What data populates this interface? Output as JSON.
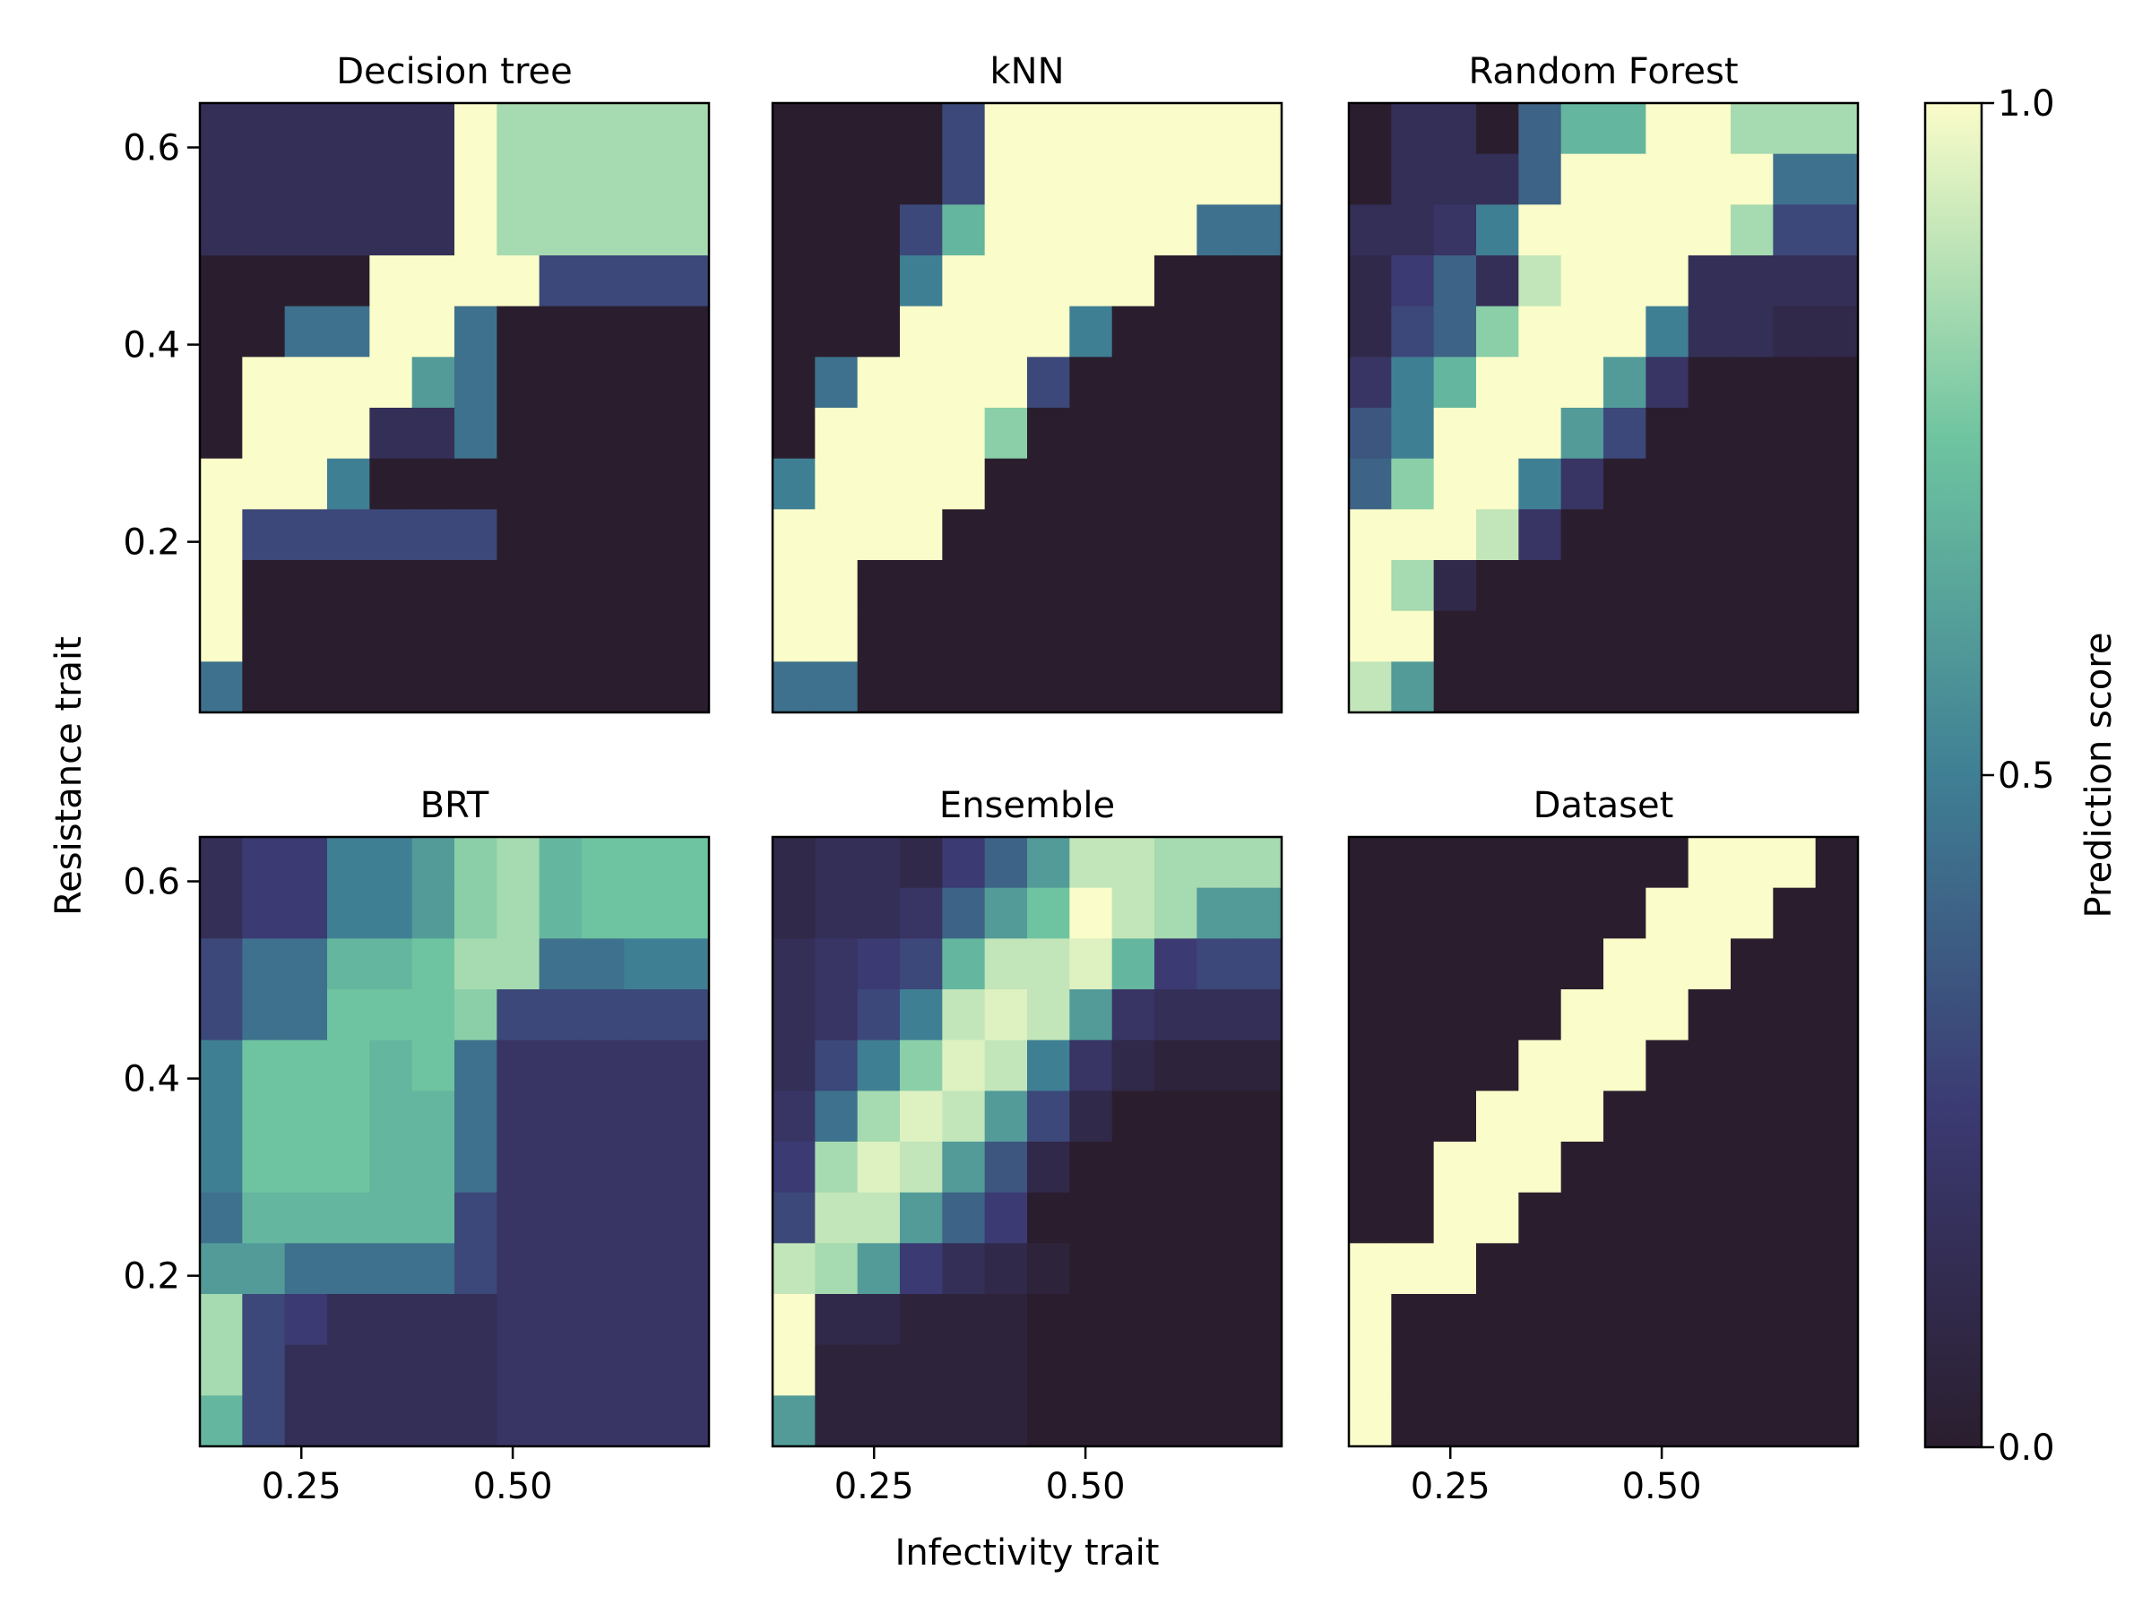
{
  "xlabel": "Infectivity trait",
  "ylabel": "Resistance trait",
  "colorbar": {
    "label": "Prediction score",
    "lim": [
      0,
      1
    ],
    "ticks": [
      {
        "value": 0,
        "label": "0.0"
      },
      {
        "value": 0.5,
        "label": "0.5"
      },
      {
        "value": 1,
        "label": "1.0"
      }
    ],
    "colors": [
      "#2a1e2e",
      "#3b3a72",
      "#3f7f94",
      "#6ec4a0",
      "#fafcc9"
    ]
  },
  "chart_data": [
    {
      "type": "heatmap",
      "title": "Decision tree",
      "xlim": [
        0.13,
        0.732
      ],
      "ylim": [
        0.027,
        0.645
      ],
      "yticks": [
        0.2,
        0.4,
        0.6
      ],
      "z": [
        [
          0.15,
          0.15,
          0.15,
          0.15,
          0.15,
          0.15,
          1,
          0.85,
          0.85,
          0.85,
          0.85,
          0.85
        ],
        [
          0.15,
          0.15,
          0.15,
          0.15,
          0.15,
          0.15,
          1,
          0.85,
          0.85,
          0.85,
          0.85,
          0.85
        ],
        [
          0.15,
          0.15,
          0.15,
          0.15,
          0.15,
          0.15,
          1,
          0.85,
          0.85,
          0.85,
          0.85,
          0.85
        ],
        [
          0,
          0,
          0,
          0,
          1,
          1,
          1,
          1,
          0.3,
          0.3,
          0.3,
          0.3
        ],
        [
          0,
          0,
          0.45,
          0.45,
          1,
          1,
          0.45,
          0,
          0,
          0,
          0,
          0
        ],
        [
          0,
          1,
          1,
          1,
          1,
          0.6,
          0.45,
          0,
          0,
          0,
          0,
          0
        ],
        [
          0,
          1,
          1,
          1,
          0.15,
          0.15,
          0.45,
          0,
          0,
          0,
          0,
          0
        ],
        [
          1,
          1,
          1,
          0.5,
          0,
          0,
          0,
          0,
          0,
          0,
          0,
          0
        ],
        [
          1,
          0.3,
          0.3,
          0.3,
          0.3,
          0.3,
          0.3,
          0,
          0,
          0,
          0,
          0
        ],
        [
          1,
          0,
          0,
          0,
          0,
          0,
          0,
          0,
          0,
          0,
          0,
          0
        ],
        [
          1,
          0,
          0,
          0,
          0,
          0,
          0,
          0,
          0,
          0,
          0,
          0
        ],
        [
          0.45,
          0,
          0,
          0,
          0,
          0,
          0,
          0,
          0,
          0,
          0,
          0
        ]
      ]
    },
    {
      "type": "heatmap",
      "title": "kNN",
      "xlim": [
        0.13,
        0.732
      ],
      "ylim": [
        0.027,
        0.645
      ],
      "z": [
        [
          0,
          0,
          0,
          0,
          0.3,
          1,
          1,
          1,
          1,
          1,
          1,
          1
        ],
        [
          0,
          0,
          0,
          0,
          0.3,
          1,
          1,
          1,
          1,
          1,
          1,
          1
        ],
        [
          0,
          0,
          0,
          0.3,
          0.7,
          1,
          1,
          1,
          1,
          1,
          0.45,
          0.45
        ],
        [
          0,
          0,
          0,
          0.5,
          1,
          1,
          1,
          1,
          1,
          0,
          0,
          0
        ],
        [
          0,
          0,
          0,
          1,
          1,
          1,
          1,
          0.5,
          0,
          0,
          0,
          0
        ],
        [
          0,
          0.45,
          1,
          1,
          1,
          1,
          0.3,
          0,
          0,
          0,
          0,
          0
        ],
        [
          0,
          1,
          1,
          1,
          1,
          0.8,
          0,
          0,
          0,
          0,
          0,
          0
        ],
        [
          0.5,
          1,
          1,
          1,
          1,
          0,
          0,
          0,
          0,
          0,
          0,
          0
        ],
        [
          1,
          1,
          1,
          1,
          0,
          0,
          0,
          0,
          0,
          0,
          0,
          0
        ],
        [
          1,
          1,
          0,
          0,
          0,
          0,
          0,
          0,
          0,
          0,
          0,
          0
        ],
        [
          1,
          1,
          0,
          0,
          0,
          0,
          0,
          0,
          0,
          0,
          0,
          0
        ],
        [
          0.45,
          0.45,
          0,
          0,
          0,
          0,
          0,
          0,
          0,
          0,
          0,
          0
        ]
      ]
    },
    {
      "type": "heatmap",
      "title": "Random Forest",
      "xlim": [
        0.13,
        0.732
      ],
      "ylim": [
        0.027,
        0.645
      ],
      "z": [
        [
          0,
          0.15,
          0.15,
          0,
          0.4,
          0.7,
          0.7,
          1,
          1,
          0.85,
          0.85,
          0.85
        ],
        [
          0,
          0.15,
          0.15,
          0.15,
          0.4,
          1,
          1,
          1,
          1,
          1,
          0.45,
          0.45
        ],
        [
          0.15,
          0.15,
          0.2,
          0.5,
          1,
          1,
          1,
          1,
          1,
          0.85,
          0.3,
          0.3
        ],
        [
          0.1,
          0.25,
          0.4,
          0.15,
          0.9,
          1,
          1,
          1,
          0.15,
          0.15,
          0.15,
          0.15
        ],
        [
          0.1,
          0.3,
          0.4,
          0.8,
          1,
          1,
          1,
          0.5,
          0.15,
          0.15,
          0.1,
          0.1
        ],
        [
          0.2,
          0.5,
          0.7,
          1,
          1,
          1,
          0.6,
          0.2,
          0,
          0,
          0,
          0
        ],
        [
          0.35,
          0.5,
          1,
          1,
          1,
          0.6,
          0.3,
          0,
          0,
          0,
          0,
          0
        ],
        [
          0.4,
          0.8,
          1,
          1,
          0.5,
          0.2,
          0,
          0,
          0,
          0,
          0,
          0
        ],
        [
          1,
          1,
          1,
          0.9,
          0.2,
          0,
          0,
          0,
          0,
          0,
          0,
          0
        ],
        [
          1,
          0.85,
          0.1,
          0,
          0,
          0,
          0,
          0,
          0,
          0,
          0,
          0
        ],
        [
          1,
          1,
          0,
          0,
          0,
          0,
          0,
          0,
          0,
          0,
          0,
          0
        ],
        [
          0.9,
          0.6,
          0,
          0,
          0,
          0,
          0,
          0,
          0,
          0,
          0,
          0
        ]
      ]
    },
    {
      "type": "heatmap",
      "title": "BRT",
      "xlim": [
        0.13,
        0.732
      ],
      "ylim": [
        0.027,
        0.645
      ],
      "xticks": [
        {
          "value": 0.25,
          "label": "0.25"
        },
        {
          "value": 0.5,
          "label": "0.50"
        }
      ],
      "yticks": [
        0.2,
        0.4,
        0.6
      ],
      "z": [
        [
          0.15,
          0.25,
          0.25,
          0.5,
          0.5,
          0.6,
          0.8,
          0.85,
          0.7,
          0.75,
          0.75,
          0.75
        ],
        [
          0.15,
          0.25,
          0.25,
          0.5,
          0.5,
          0.6,
          0.8,
          0.85,
          0.7,
          0.75,
          0.75,
          0.75
        ],
        [
          0.3,
          0.45,
          0.45,
          0.7,
          0.7,
          0.75,
          0.85,
          0.85,
          0.45,
          0.45,
          0.5,
          0.5
        ],
        [
          0.3,
          0.45,
          0.45,
          0.75,
          0.75,
          0.75,
          0.8,
          0.3,
          0.3,
          0.3,
          0.3,
          0.3
        ],
        [
          0.5,
          0.75,
          0.75,
          0.75,
          0.7,
          0.75,
          0.45,
          0.2,
          0.2,
          0.2,
          0.2,
          0.2
        ],
        [
          0.5,
          0.75,
          0.75,
          0.75,
          0.7,
          0.7,
          0.45,
          0.2,
          0.2,
          0.2,
          0.2,
          0.2
        ],
        [
          0.5,
          0.75,
          0.75,
          0.75,
          0.7,
          0.7,
          0.45,
          0.2,
          0.2,
          0.2,
          0.2,
          0.2
        ],
        [
          0.45,
          0.7,
          0.7,
          0.7,
          0.7,
          0.7,
          0.3,
          0.2,
          0.2,
          0.2,
          0.2,
          0.2
        ],
        [
          0.6,
          0.6,
          0.45,
          0.45,
          0.45,
          0.45,
          0.3,
          0.2,
          0.2,
          0.2,
          0.2,
          0.2
        ],
        [
          0.85,
          0.3,
          0.25,
          0.15,
          0.15,
          0.15,
          0.15,
          0.2,
          0.2,
          0.2,
          0.2,
          0.2
        ],
        [
          0.85,
          0.3,
          0.15,
          0.15,
          0.15,
          0.15,
          0.15,
          0.2,
          0.2,
          0.2,
          0.2,
          0.2
        ],
        [
          0.7,
          0.3,
          0.15,
          0.15,
          0.15,
          0.15,
          0.15,
          0.2,
          0.2,
          0.2,
          0.2,
          0.2
        ]
      ]
    },
    {
      "type": "heatmap",
      "title": "Ensemble",
      "xlim": [
        0.13,
        0.732
      ],
      "ylim": [
        0.027,
        0.645
      ],
      "xticks": [
        {
          "value": 0.25,
          "label": "0.25"
        },
        {
          "value": 0.5,
          "label": "0.50"
        }
      ],
      "z": [
        [
          0.1,
          0.15,
          0.15,
          0.1,
          0.25,
          0.4,
          0.6,
          0.9,
          0.9,
          0.85,
          0.85,
          0.85
        ],
        [
          0.1,
          0.15,
          0.15,
          0.2,
          0.4,
          0.6,
          0.75,
          1,
          0.9,
          0.85,
          0.6,
          0.6
        ],
        [
          0.15,
          0.2,
          0.25,
          0.3,
          0.7,
          0.9,
          0.9,
          0.95,
          0.7,
          0.25,
          0.3,
          0.3
        ],
        [
          0.15,
          0.2,
          0.3,
          0.5,
          0.9,
          0.95,
          0.9,
          0.6,
          0.2,
          0.15,
          0.15,
          0.15
        ],
        [
          0.15,
          0.3,
          0.5,
          0.8,
          0.95,
          0.9,
          0.5,
          0.2,
          0.1,
          0.05,
          0.05,
          0.05
        ],
        [
          0.2,
          0.45,
          0.85,
          0.95,
          0.9,
          0.6,
          0.3,
          0.1,
          0,
          0,
          0,
          0
        ],
        [
          0.25,
          0.85,
          0.95,
          0.9,
          0.6,
          0.35,
          0.1,
          0,
          0,
          0,
          0,
          0
        ],
        [
          0.3,
          0.9,
          0.9,
          0.6,
          0.4,
          0.25,
          0,
          0,
          0,
          0,
          0,
          0
        ],
        [
          0.9,
          0.85,
          0.6,
          0.25,
          0.15,
          0.1,
          0.05,
          0,
          0,
          0,
          0,
          0
        ],
        [
          1,
          0.1,
          0.1,
          0.05,
          0.05,
          0.05,
          0,
          0,
          0,
          0,
          0,
          0
        ],
        [
          1,
          0.05,
          0.05,
          0.05,
          0.05,
          0.05,
          0,
          0,
          0,
          0,
          0,
          0
        ],
        [
          0.6,
          0.05,
          0.05,
          0.05,
          0.05,
          0.05,
          0,
          0,
          0,
          0,
          0,
          0
        ]
      ]
    },
    {
      "type": "heatmap",
      "title": "Dataset",
      "xlim": [
        0.13,
        0.732
      ],
      "ylim": [
        0.027,
        0.645
      ],
      "xticks": [
        {
          "value": 0.25,
          "label": "0.25"
        },
        {
          "value": 0.5,
          "label": "0.50"
        }
      ],
      "z": [
        [
          0,
          0,
          0,
          0,
          0,
          0,
          0,
          0,
          1,
          1,
          1,
          0
        ],
        [
          0,
          0,
          0,
          0,
          0,
          0,
          0,
          1,
          1,
          1,
          0,
          0
        ],
        [
          0,
          0,
          0,
          0,
          0,
          0,
          1,
          1,
          1,
          0,
          0,
          0
        ],
        [
          0,
          0,
          0,
          0,
          0,
          1,
          1,
          1,
          0,
          0,
          0,
          0
        ],
        [
          0,
          0,
          0,
          0,
          1,
          1,
          1,
          0,
          0,
          0,
          0,
          0
        ],
        [
          0,
          0,
          0,
          1,
          1,
          1,
          0,
          0,
          0,
          0,
          0,
          0
        ],
        [
          0,
          0,
          1,
          1,
          1,
          0,
          0,
          0,
          0,
          0,
          0,
          0
        ],
        [
          0,
          0,
          1,
          1,
          0,
          0,
          0,
          0,
          0,
          0,
          0,
          0
        ],
        [
          1,
          1,
          1,
          0,
          0,
          0,
          0,
          0,
          0,
          0,
          0,
          0
        ],
        [
          1,
          0,
          0,
          0,
          0,
          0,
          0,
          0,
          0,
          0,
          0,
          0
        ],
        [
          1,
          0,
          0,
          0,
          0,
          0,
          0,
          0,
          0,
          0,
          0,
          0
        ],
        [
          1,
          0,
          0,
          0,
          0,
          0,
          0,
          0,
          0,
          0,
          0,
          0
        ]
      ]
    }
  ]
}
